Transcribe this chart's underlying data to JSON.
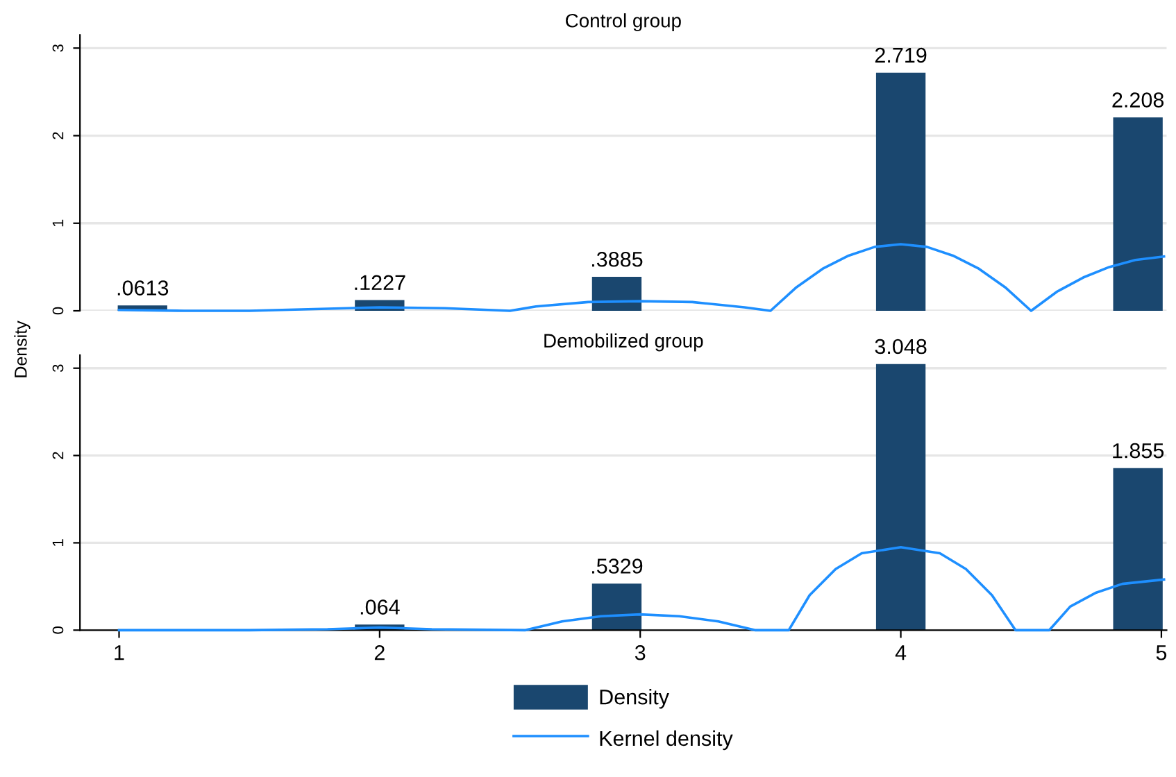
{
  "chart_data": [
    {
      "type": "bar",
      "title": "Control group",
      "ylabel": "Density",
      "xlim": [
        0.85,
        5.02
      ],
      "ylim": [
        0,
        3.15
      ],
      "yticks": [
        0,
        1,
        2,
        3
      ],
      "xticks": [
        1,
        2,
        3,
        4,
        5
      ],
      "tick_labels": "y",
      "grid": "y",
      "series": [
        {
          "color": "#1a476f",
          "x": [
            1.09,
            2,
            2.91,
            4,
            4.91
          ],
          "values": [
            0.0613,
            0.1227,
            0.3885,
            2.719,
            2.208
          ],
          "value_labels": [
            ".0613",
            ".1227",
            ".3885",
            "2.719",
            "2.208"
          ]
        },
        {
          "type": "line",
          "color": "#1e8fff",
          "x": [
            1,
            1.25,
            1.5,
            1.75,
            2,
            2.25,
            2.5,
            2.6,
            2.8,
            3,
            3.2,
            3.4,
            3.5,
            3.6,
            3.7,
            3.8,
            3.9,
            4,
            4.1,
            4.2,
            4.3,
            4.4,
            4.5,
            4.6,
            4.7,
            4.8,
            4.9,
            5.01
          ],
          "values": [
            0.01,
            0,
            0,
            0.02,
            0.04,
            0.03,
            0,
            0.05,
            0.1,
            0.11,
            0.1,
            0.04,
            0,
            0.27,
            0.48,
            0.63,
            0.73,
            0.76,
            0.73,
            0.63,
            0.48,
            0.27,
            0,
            0.22,
            0.38,
            0.5,
            0.58,
            0.62
          ]
        }
      ]
    },
    {
      "type": "bar",
      "title": "Demobilized group",
      "xlim": [
        0.85,
        5.02
      ],
      "ylim": [
        0,
        3.15
      ],
      "yticks": [
        0,
        1,
        2,
        3
      ],
      "xticks": [
        1,
        2,
        3,
        4,
        5
      ],
      "grid": "y",
      "legend": "bottom",
      "series": [
        {
          "name": "Density",
          "color": "#1a476f",
          "x": [
            1.09,
            2,
            2.91,
            4,
            4.91
          ],
          "values": [
            0,
            0.064,
            0.5329,
            3.048,
            1.855
          ],
          "value_labels": [
            null,
            ".064",
            ".5329",
            "3.048",
            "1.855"
          ]
        },
        {
          "name": "Kernel density",
          "type": "line",
          "color": "#1e8fff",
          "x": [
            1,
            1.5,
            1.8,
            2,
            2.2,
            2.56,
            2.7,
            2.85,
            3,
            3.15,
            3.3,
            3.44,
            3.57,
            3.65,
            3.75,
            3.85,
            4,
            4.15,
            4.25,
            4.35,
            4.44,
            4.57,
            4.65,
            4.75,
            4.85,
            5.01
          ],
          "values": [
            0,
            0,
            0.01,
            0.03,
            0.01,
            0,
            0.1,
            0.16,
            0.18,
            0.16,
            0.1,
            0,
            0,
            0.4,
            0.7,
            0.88,
            0.95,
            0.88,
            0.7,
            0.4,
            0,
            0,
            0.27,
            0.43,
            0.53,
            0.58
          ]
        }
      ]
    }
  ]
}
